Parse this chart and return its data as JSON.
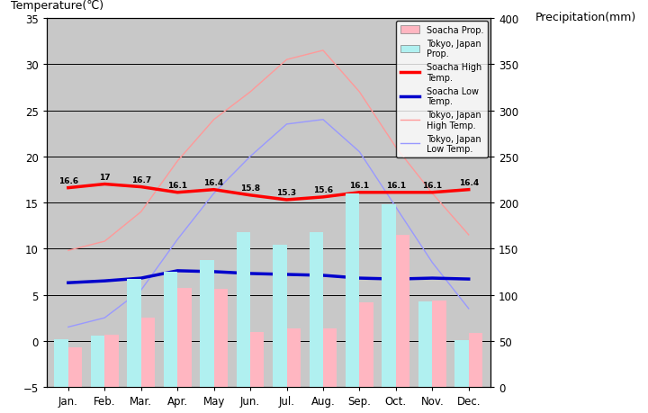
{
  "months": [
    "Jan.",
    "Feb.",
    "Mar.",
    "Apr.",
    "May",
    "Jun.",
    "Jul.",
    "Aug.",
    "Sep.",
    "Oct.",
    "Nov.",
    "Dec."
  ],
  "soacha_high": [
    16.6,
    17.0,
    16.7,
    16.1,
    16.4,
    15.8,
    15.3,
    15.6,
    16.1,
    16.1,
    16.1,
    16.4
  ],
  "soacha_low": [
    6.3,
    6.5,
    6.8,
    7.6,
    7.5,
    7.3,
    7.2,
    7.1,
    6.8,
    6.7,
    6.8,
    6.7
  ],
  "tokyo_high": [
    9.8,
    10.8,
    14.0,
    19.5,
    24.0,
    27.0,
    30.5,
    31.5,
    27.0,
    21.0,
    16.0,
    11.5
  ],
  "tokyo_low": [
    1.5,
    2.5,
    5.5,
    11.0,
    16.0,
    20.0,
    23.5,
    24.0,
    20.5,
    14.5,
    8.5,
    3.5
  ],
  "soacha_precip_mm": [
    43,
    57,
    75,
    107,
    106,
    60,
    63,
    63,
    92,
    165,
    94,
    59
  ],
  "tokyo_precip_mm": [
    52,
    56,
    117,
    125,
    138,
    168,
    154,
    168,
    210,
    198,
    93,
    51
  ],
  "soacha_high_labels": [
    "16.6",
    "17",
    "16.7",
    "16.1",
    "16.4",
    "15.8",
    "15.3",
    "15.6",
    "16.1",
    "16.1",
    "16.1",
    "16.4"
  ],
  "bg_color": "#c8c8c8",
  "soacha_bar_color": "#ffb6c1",
  "tokyo_bar_color": "#b0f0f0",
  "soacha_high_color": "#ff0000",
  "soacha_low_color": "#0000cc",
  "tokyo_high_color": "#ff9999",
  "tokyo_low_color": "#9999ff",
  "ylim_temp": [
    -5,
    35
  ],
  "ylim_precip": [
    0,
    400
  ],
  "ylabel_left": "Temperature(℃)",
  "ylabel_right": "Precipitation(mm)",
  "figsize": [
    7.2,
    4.6
  ],
  "dpi": 100
}
